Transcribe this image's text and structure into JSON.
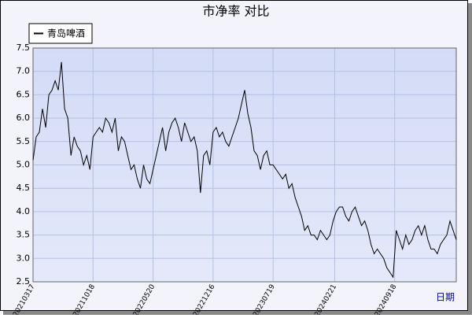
{
  "chart_data": {
    "type": "line",
    "title": "市净率  对比",
    "x_label": "日期",
    "legend_position": "upper left",
    "grid": true,
    "xlim": [
      0,
      134
    ],
    "xticks": [
      {
        "value": 0,
        "label": "20210317"
      },
      {
        "value": 19,
        "label": "20211018"
      },
      {
        "value": 38,
        "label": "20220520"
      },
      {
        "value": 57,
        "label": "20221216"
      },
      {
        "value": 76,
        "label": "20230719"
      },
      {
        "value": 95.5,
        "label": "20240221"
      },
      {
        "value": 114.5,
        "label": "20240918"
      }
    ],
    "ylim": [
      2.5,
      7.5
    ],
    "yticks": [
      2.5,
      {
        "value": 3,
        "label": "3.0"
      },
      3.5,
      {
        "value": 4,
        "label": "4.0"
      },
      4.5,
      {
        "value": 5,
        "label": "5.0"
      },
      5.5,
      {
        "value": 6,
        "label": "6.0"
      },
      6.5,
      {
        "value": 7,
        "label": "7.0"
      },
      7.5
    ],
    "series": [
      {
        "name": "青岛啤酒",
        "color": "#000000",
        "values": [
          5.1,
          5.6,
          5.7,
          6.2,
          5.8,
          6.5,
          6.6,
          6.8,
          6.6,
          7.2,
          6.2,
          6.0,
          5.2,
          5.6,
          5.4,
          5.3,
          5.0,
          5.2,
          4.9,
          5.6,
          5.7,
          5.8,
          5.7,
          6.0,
          5.9,
          5.7,
          6.0,
          5.3,
          5.6,
          5.5,
          5.2,
          4.9,
          5.0,
          4.7,
          4.5,
          5.0,
          4.7,
          4.6,
          4.9,
          5.2,
          5.5,
          5.8,
          5.3,
          5.7,
          5.9,
          6.0,
          5.8,
          5.5,
          5.9,
          5.7,
          5.5,
          5.6,
          5.3,
          4.4,
          5.2,
          5.3,
          5.0,
          5.7,
          5.8,
          5.6,
          5.7,
          5.5,
          5.4,
          5.6,
          5.8,
          6.0,
          6.3,
          6.6,
          6.1,
          5.8,
          5.3,
          5.2,
          4.9,
          5.2,
          5.3,
          5.0,
          5.0,
          4.9,
          4.8,
          4.7,
          4.8,
          4.5,
          4.6,
          4.3,
          4.1,
          3.9,
          3.6,
          3.7,
          3.5,
          3.5,
          3.4,
          3.6,
          3.5,
          3.4,
          3.5,
          3.8,
          4.0,
          4.1,
          4.1,
          3.9,
          3.8,
          4.0,
          4.1,
          3.9,
          3.7,
          3.8,
          3.6,
          3.3,
          3.1,
          3.2,
          3.1,
          3.0,
          2.8,
          2.7,
          2.6,
          3.6,
          3.4,
          3.2,
          3.5,
          3.3,
          3.4,
          3.6,
          3.7,
          3.5,
          3.7,
          3.4,
          3.2,
          3.2,
          3.1,
          3.3,
          3.4,
          3.5,
          3.8,
          3.6,
          3.4
        ]
      }
    ]
  }
}
